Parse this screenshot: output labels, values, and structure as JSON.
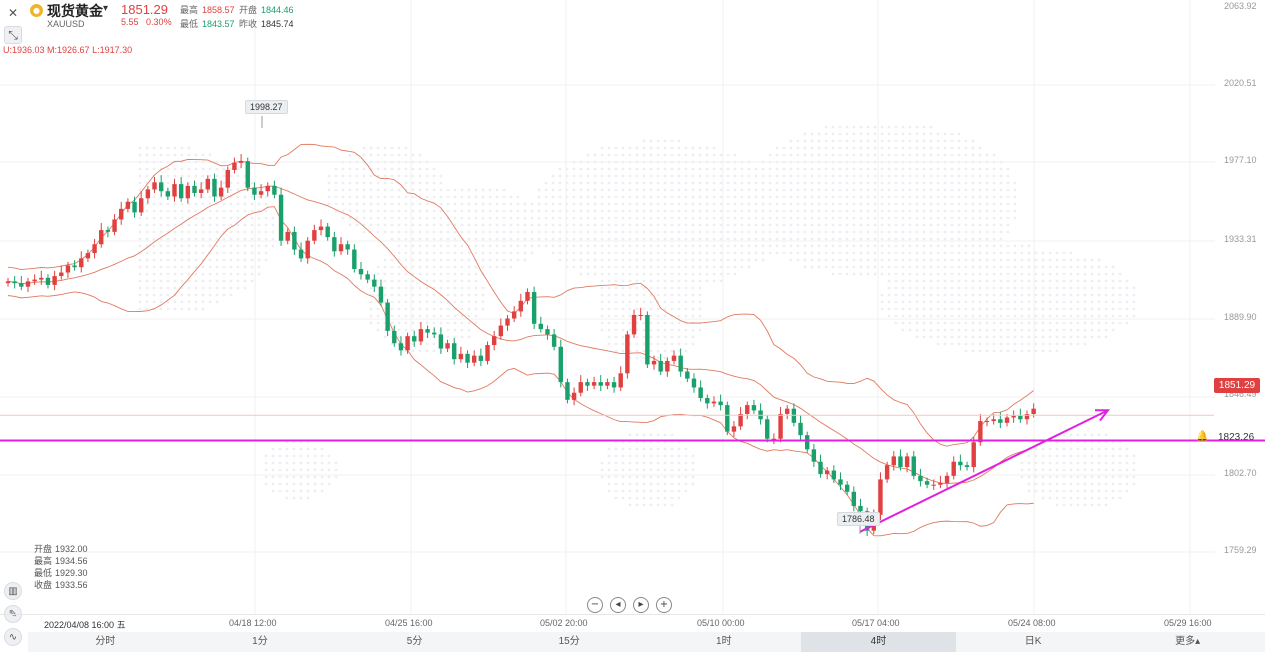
{
  "header": {
    "symbol_name": "现货黄金",
    "symbol_code": "XAUUSD",
    "price": "1851.29",
    "change": "5.55",
    "change_pct": "0.30%",
    "high_label": "最高",
    "high_value": "1858.57",
    "open_label": "开盘",
    "open_value": "1844.46",
    "low_label": "最低",
    "low_value": "1843.57",
    "prev_close_label": "昨收",
    "prev_close_value": "1845.74"
  },
  "boll": {
    "text": "U:1936.03   M:1926.67   L:1917.30"
  },
  "bar_info": {
    "open_label": "开盘",
    "open_value": "1932.00",
    "high_label": "最高",
    "high_value": "1934.56",
    "low_label": "最低",
    "low_value": "1929.30",
    "close_label": "收盘",
    "close_value": "1933.56"
  },
  "price_axis": {
    "labels": [
      "2063.92",
      "2020.51",
      "1977.10",
      "1933.31",
      "1889.90",
      "1846.49",
      "1802.70",
      "1759.29"
    ],
    "last_price_tag": "1851.29",
    "alert_value": "1823.26"
  },
  "callouts": {
    "max": "1998.27",
    "min": "1786.48"
  },
  "time_axis": {
    "labels": [
      "2022/04/08 16:00 五",
      "04/18 12:00",
      "04/25 16:00",
      "05/02 20:00",
      "05/10 00:00",
      "05/17 04:00",
      "05/24 08:00",
      "05/29 16:00"
    ]
  },
  "periods": [
    "分时",
    "1分",
    "5分",
    "15分",
    "1时",
    "4时",
    "日K",
    "更多▴"
  ],
  "active_period": "4时",
  "colors": {
    "up": "#e04040",
    "down": "#1aa06a",
    "boll": "#e07a5f",
    "trend": "#e020e0"
  },
  "icons": {
    "close": "close-icon",
    "expand": "expand-icon",
    "alert": "bell-icon"
  },
  "chart_data": {
    "type": "candlestick",
    "symbol": "XAUUSD",
    "timeframe": "4H",
    "ylim": [
      1740,
      2085
    ],
    "closes": [
      1927,
      1926,
      1924,
      1927,
      1928,
      1929,
      1925,
      1930,
      1932,
      1936,
      1935,
      1940,
      1943,
      1948,
      1956,
      1955,
      1962,
      1968,
      1972,
      1966,
      1974,
      1979,
      1983,
      1978,
      1975,
      1982,
      1974,
      1981,
      1977,
      1979,
      1985,
      1975,
      1980,
      1990,
      1994,
      1995,
      1980,
      1976,
      1978,
      1981,
      1976,
      1950,
      1955,
      1945,
      1940,
      1950,
      1956,
      1958,
      1952,
      1944,
      1948,
      1945,
      1934,
      1931,
      1928,
      1924,
      1915,
      1899,
      1892,
      1888,
      1896,
      1893,
      1900,
      1898,
      1897,
      1889,
      1892,
      1883,
      1886,
      1881,
      1885,
      1882,
      1891,
      1896,
      1902,
      1906,
      1910,
      1916,
      1921,
      1903,
      1900,
      1897,
      1890,
      1870,
      1860,
      1864,
      1870,
      1868,
      1870,
      1868,
      1870,
      1867,
      1875,
      1897,
      1908,
      1908,
      1880,
      1882,
      1876,
      1882,
      1885,
      1876,
      1872,
      1867,
      1861,
      1858,
      1859,
      1857,
      1842,
      1845,
      1852,
      1857,
      1854,
      1849,
      1838,
      1838,
      1852,
      1855,
      1847,
      1840,
      1832,
      1825,
      1818,
      1820,
      1815,
      1812,
      1808,
      1800,
      1797,
      1786,
      1795,
      1815,
      1823,
      1828,
      1822,
      1828,
      1817,
      1814,
      1812,
      1812,
      1813,
      1817,
      1825,
      1823,
      1822,
      1836,
      1848,
      1848,
      1849,
      1847,
      1850,
      1851,
      1849,
      1852,
      1855
    ],
    "bollinger": {
      "upper": "U:1936.03",
      "middle": "M:1926.67",
      "lower": "L:1917.30"
    },
    "annotations": {
      "horizontal_line": 1837,
      "max": 1998.27,
      "min": 1786.48,
      "last": 1851.29
    }
  }
}
